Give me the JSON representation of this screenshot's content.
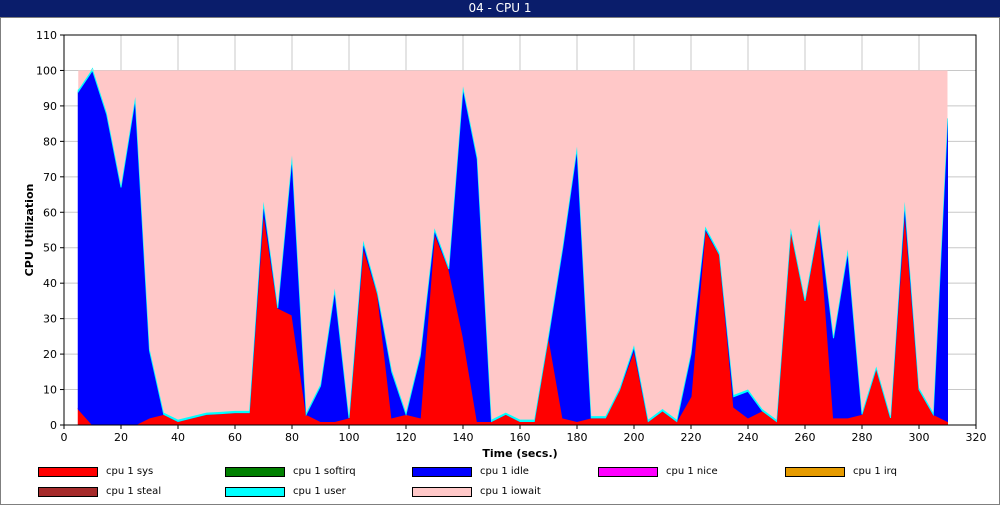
{
  "window_title": "04 - CPU 1",
  "chart_data": {
    "type": "area",
    "title": "",
    "xlabel": "Time (secs.)",
    "ylabel": "CPU Utilization",
    "xlim": [
      0,
      320
    ],
    "ylim": [
      0,
      110
    ],
    "x_ticks": [
      0,
      20,
      40,
      60,
      80,
      100,
      120,
      140,
      160,
      180,
      200,
      220,
      240,
      260,
      280,
      300,
      320
    ],
    "y_ticks": [
      0,
      10,
      20,
      30,
      40,
      50,
      60,
      70,
      80,
      90,
      100,
      110
    ],
    "grid": true,
    "legend_position": "bottom",
    "x": [
      5,
      10,
      15,
      20,
      25,
      30,
      35,
      40,
      45,
      50,
      55,
      60,
      65,
      70,
      75,
      80,
      85,
      90,
      95,
      100,
      105,
      110,
      115,
      120,
      125,
      130,
      135,
      140,
      145,
      150,
      155,
      160,
      165,
      170,
      175,
      180,
      185,
      190,
      195,
      200,
      205,
      210,
      215,
      220,
      225,
      230,
      235,
      240,
      245,
      250,
      255,
      260,
      265,
      270,
      275,
      280,
      285,
      290,
      295,
      300,
      305,
      310
    ],
    "series": [
      {
        "name": "cpu 1 sys",
        "color": "#ff0000",
        "values": [
          4.5,
          0,
          0,
          0,
          0,
          2,
          3,
          1,
          2,
          3,
          3.2,
          3.5,
          3.5,
          60,
          33,
          31,
          3,
          1,
          1,
          2,
          50,
          37,
          2,
          3,
          2,
          54,
          44,
          25,
          1,
          1,
          3,
          1,
          1,
          25,
          2,
          1,
          2,
          2,
          10,
          21,
          1,
          4,
          1,
          8,
          55,
          48,
          5,
          2,
          4,
          1,
          55,
          35,
          57,
          2,
          2,
          3,
          16,
          2,
          60,
          10,
          3,
          1
        ]
      },
      {
        "name": "cpu 1 softirq",
        "color": "#008000",
        "values": [
          0,
          0,
          0,
          0,
          0,
          0,
          0,
          0,
          0,
          0,
          0,
          0,
          0,
          0,
          0,
          0,
          0,
          0,
          0,
          0,
          0,
          0,
          0,
          0,
          0,
          0,
          0,
          0,
          0,
          0,
          0,
          0,
          0,
          0,
          0,
          0,
          0,
          0,
          0,
          0,
          0,
          0,
          0,
          0,
          0,
          0,
          0,
          0,
          0,
          0,
          0,
          0,
          0,
          0,
          0,
          0,
          0,
          0,
          0,
          0,
          0,
          0
        ]
      },
      {
        "name": "cpu 1 idle",
        "color": "#0000ff",
        "values": [
          89.5,
          100,
          87.5,
          67,
          92,
          19,
          0,
          0,
          0,
          0,
          0,
          0,
          0,
          2.5,
          0,
          44.5,
          0,
          10,
          37,
          0,
          1.5,
          0,
          13,
          0,
          17.5,
          1,
          0,
          70,
          74,
          0,
          0,
          0,
          0,
          0,
          48,
          77,
          0,
          0,
          0,
          1,
          0,
          0,
          0,
          12,
          0.5,
          0,
          3,
          7.5,
          0,
          0,
          0,
          0,
          0.5,
          22.5,
          47,
          0,
          0,
          0,
          2.5,
          0,
          0,
          85
        ]
      },
      {
        "name": "cpu 1 nice",
        "color": "#ff00ff",
        "values": [
          0,
          0,
          0,
          0,
          0,
          0,
          0,
          0,
          0,
          0,
          0,
          0,
          0,
          0,
          0,
          0,
          0,
          0,
          0,
          0,
          0,
          0,
          0,
          0,
          0,
          0,
          0,
          0,
          0,
          0,
          0,
          0,
          0,
          0,
          0,
          0,
          0,
          0,
          0,
          0,
          0,
          0,
          0,
          0,
          0,
          0,
          0,
          0,
          0,
          0,
          0,
          0,
          0,
          0,
          0,
          0,
          0,
          0,
          0,
          0,
          0,
          0
        ]
      },
      {
        "name": "cpu 1 irq",
        "color": "#e69b00",
        "values": [
          0,
          0,
          0,
          0,
          0,
          0,
          0,
          0,
          0,
          0,
          0,
          0,
          0,
          0,
          0,
          0,
          0,
          0,
          0,
          0,
          0,
          0,
          0,
          0,
          0,
          0,
          0,
          0,
          0,
          0,
          0,
          0,
          0,
          0,
          0,
          0,
          0,
          0,
          0,
          0,
          0,
          0,
          0,
          0,
          0,
          0,
          0,
          0,
          0,
          0,
          0,
          0,
          0,
          0,
          0,
          0,
          0,
          0,
          0,
          0,
          0,
          0
        ]
      },
      {
        "name": "cpu 1 steal",
        "color": "#a52a2a",
        "values": [
          0,
          0,
          0,
          0,
          0,
          0,
          0,
          0,
          0,
          0,
          0,
          0,
          0,
          0,
          0,
          0,
          0,
          0,
          0,
          0,
          0,
          0,
          0,
          0,
          0,
          0,
          0,
          0,
          0,
          0,
          0,
          0,
          0,
          0,
          0,
          0,
          0,
          0,
          0,
          0,
          0,
          0,
          0,
          0,
          0,
          0,
          0,
          0,
          0,
          0,
          0,
          0,
          0,
          0,
          0,
          0,
          0,
          0,
          0,
          0,
          0,
          0
        ]
      },
      {
        "name": "cpu 1 user",
        "color": "#00ffff",
        "values": [
          0.5,
          0.5,
          0.5,
          0.5,
          0.5,
          0.5,
          0.5,
          0.5,
          0.5,
          0.5,
          0.5,
          0.5,
          0.5,
          0.5,
          0.5,
          0.5,
          0.5,
          0.5,
          0.5,
          0.5,
          0.5,
          0.5,
          0.5,
          0.5,
          0.5,
          0.5,
          0.5,
          0.5,
          0.5,
          0.5,
          0.5,
          0.5,
          0.5,
          0.5,
          0.5,
          0.5,
          0.5,
          0.5,
          0.5,
          0.5,
          0.5,
          0.5,
          0.5,
          0.5,
          0.5,
          0.5,
          0.5,
          0.5,
          0.5,
          0.5,
          0.5,
          0.5,
          0.5,
          0.5,
          0.5,
          0.5,
          0.5,
          0.5,
          0.5,
          0.5,
          0.5,
          0.5
        ]
      },
      {
        "name": "cpu 1 iowait",
        "color": "#ffc8c8",
        "fill": "remainder-to-100"
      }
    ]
  }
}
